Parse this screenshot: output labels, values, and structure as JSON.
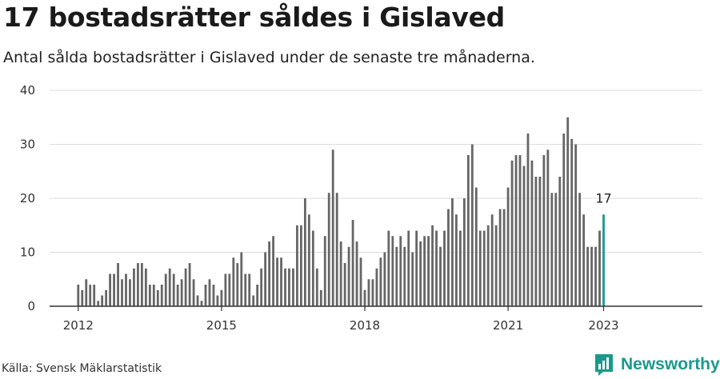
{
  "header": {
    "title": "17 bostadsrätter såldes i Gislaved",
    "subtitle": "Antal sålda bostadsrätter i Gislaved under de senaste tre månaderna."
  },
  "footer": {
    "source": "Källa: Svensk Mäklarstatistik",
    "brand": "Newsworthy"
  },
  "colors": {
    "bar": "#666666",
    "highlight": "#1a9a8c",
    "grid": "#dddddd",
    "axis": "#333333",
    "brand": "#1a9a8c"
  },
  "chart_data": {
    "type": "bar",
    "x_start": "2012-01",
    "interval": "month",
    "x_ticks": [
      "2012",
      "2015",
      "2018",
      "2021",
      "2023"
    ],
    "y_ticks": [
      0,
      10,
      20,
      30,
      40
    ],
    "ylim": [
      0,
      40
    ],
    "grid": true,
    "legend": "none",
    "highlight_label": "17",
    "values": [
      4,
      3,
      5,
      4,
      4,
      1,
      2,
      3,
      6,
      6,
      8,
      5,
      6,
      5,
      7,
      8,
      8,
      7,
      4,
      4,
      3,
      4,
      6,
      7,
      6,
      4,
      5,
      7,
      8,
      5,
      2,
      1,
      4,
      5,
      4,
      2,
      3,
      6,
      6,
      9,
      8,
      10,
      6,
      6,
      2,
      4,
      7,
      10,
      12,
      13,
      9,
      9,
      7,
      7,
      7,
      15,
      15,
      20,
      17,
      14,
      7,
      3,
      13,
      21,
      29,
      21,
      12,
      8,
      11,
      16,
      12,
      9,
      3,
      5,
      5,
      7,
      9,
      10,
      14,
      13,
      11,
      13,
      11,
      14,
      10,
      14,
      12,
      13,
      13,
      15,
      14,
      11,
      14,
      18,
      20,
      17,
      14,
      20,
      28,
      30,
      22,
      14,
      14,
      15,
      17,
      15,
      18,
      18,
      22,
      27,
      28,
      28,
      26,
      32,
      27,
      24,
      24,
      28,
      29,
      21,
      21,
      24,
      32,
      35,
      31,
      30,
      21,
      17,
      11,
      11,
      11,
      14,
      17
    ]
  }
}
